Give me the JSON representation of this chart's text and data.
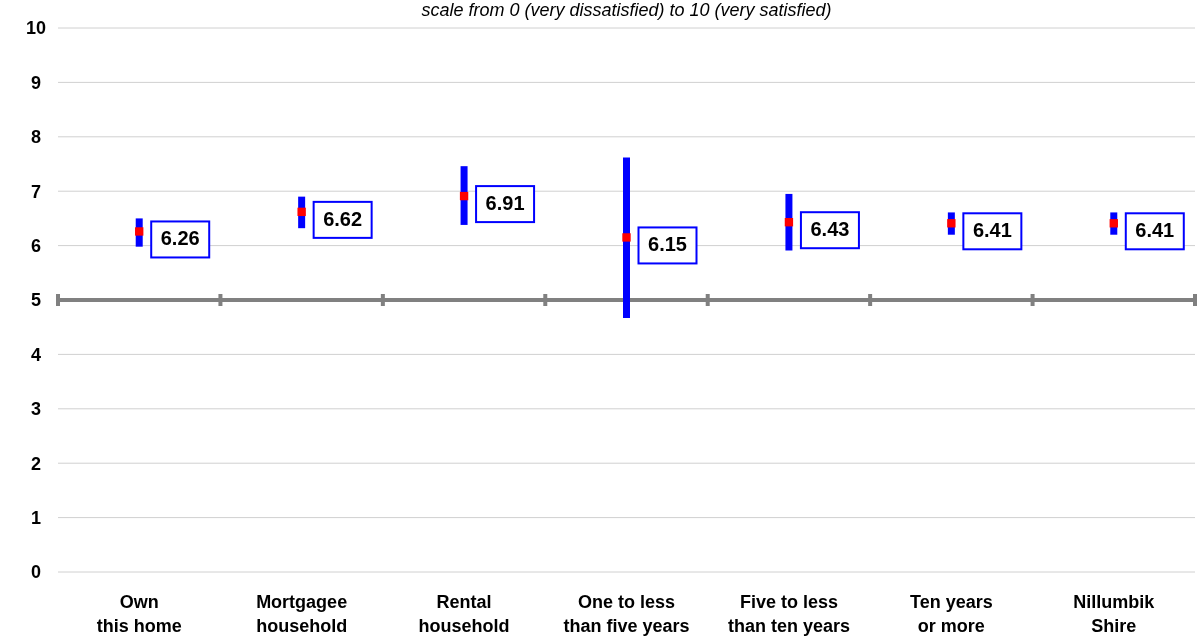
{
  "chart_data": {
    "type": "scatter",
    "subtitle": "scale from 0 (very dissatisfied) to 10 (very satisfied)",
    "categories": [
      "Own\nthis home",
      "Mortgagee\nhousehold",
      "Rental\nhousehold",
      "One to less\nthan five years",
      "Five to less\nthan ten years",
      "Ten years\nor more",
      "Nillumbik\nShire"
    ],
    "series": [
      {
        "color": "#ff0000",
        "values": [
          6.26,
          6.62,
          6.91,
          6.15,
          6.43,
          6.41,
          6.41
        ],
        "errors": [
          [
            5.98,
            6.5
          ],
          [
            6.32,
            6.9
          ],
          [
            6.38,
            7.46
          ],
          [
            4.67,
            7.62
          ],
          [
            5.91,
            6.95
          ],
          [
            6.2,
            6.61
          ],
          [
            6.2,
            6.61
          ]
        ]
      }
    ],
    "ylim": [
      0,
      10
    ],
    "yticks": [
      0,
      1,
      2,
      3,
      4,
      5,
      6,
      7,
      8,
      9,
      10
    ],
    "grid": "y",
    "marker": "square",
    "data_labels": true,
    "ref_lines": [
      {
        "axis": "y",
        "value": 5,
        "color": "#808080"
      }
    ]
  }
}
